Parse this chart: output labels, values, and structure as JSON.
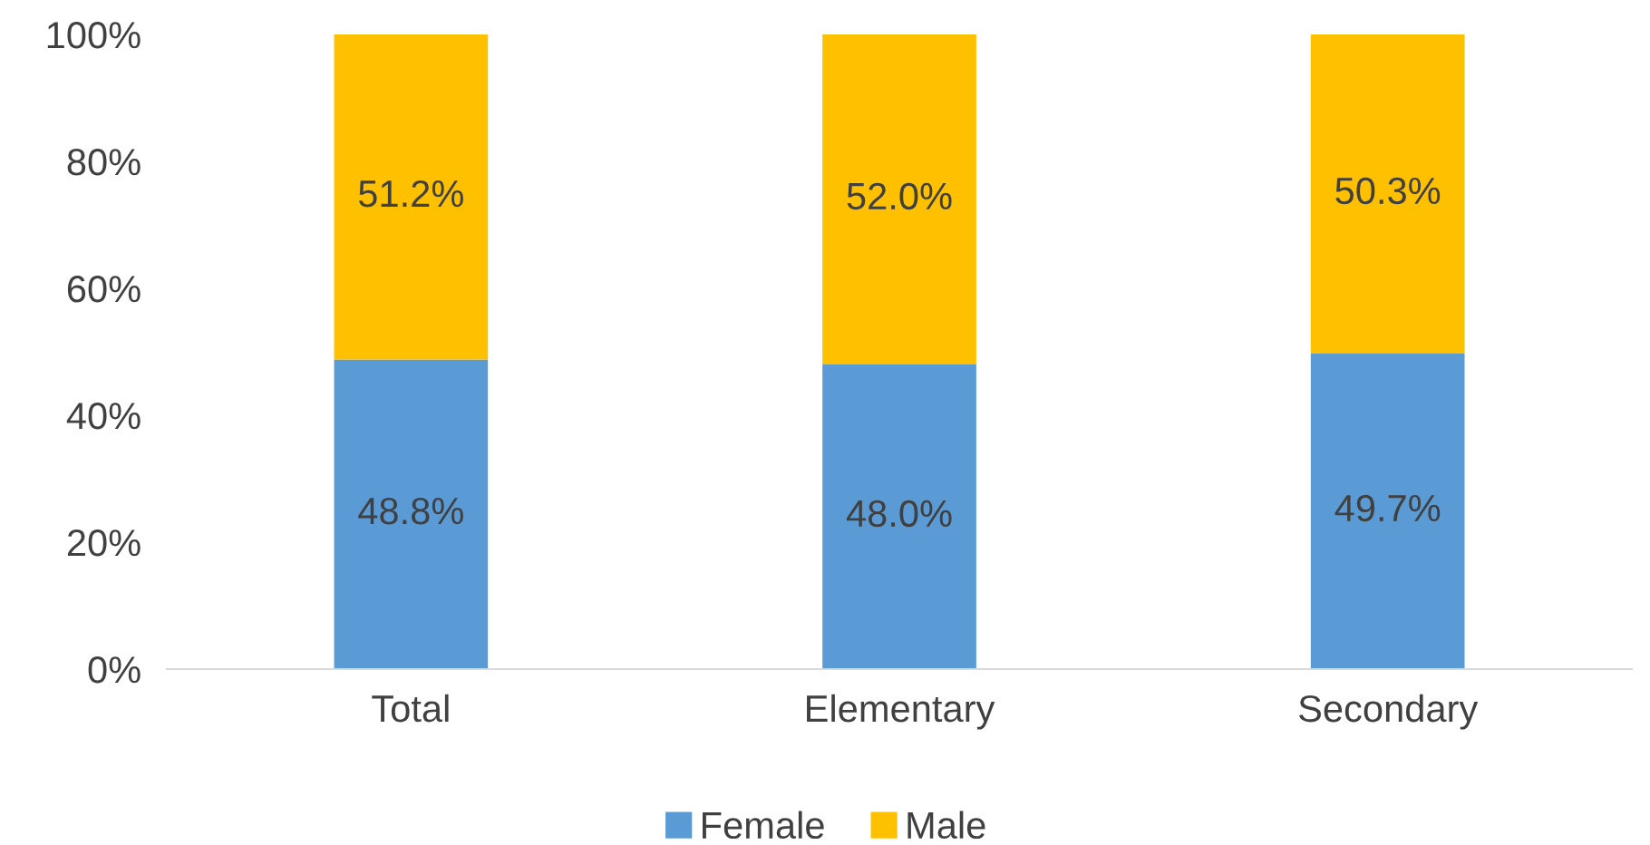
{
  "chart_data": {
    "type": "bar",
    "stacked": true,
    "categories": [
      "Total",
      "Elementary",
      "Secondary"
    ],
    "series": [
      {
        "name": "Female",
        "color": "#5b9bd5",
        "values": [
          48.8,
          48.0,
          49.7
        ],
        "value_labels": [
          "48.8%",
          "48.0%",
          "49.7%"
        ]
      },
      {
        "name": "Male",
        "color": "#ffc000",
        "values": [
          51.2,
          52.0,
          50.3
        ],
        "value_labels": [
          "51.2%",
          "52.0%",
          "50.3%"
        ]
      }
    ],
    "ylim": [
      0,
      100
    ],
    "yticks": [
      {
        "value": 0,
        "label": "0%"
      },
      {
        "value": 20,
        "label": "20%"
      },
      {
        "value": 40,
        "label": "40%"
      },
      {
        "value": 60,
        "label": "60%"
      },
      {
        "value": 80,
        "label": "80%"
      },
      {
        "value": 100,
        "label": "100%"
      }
    ],
    "legend": "bottom"
  }
}
